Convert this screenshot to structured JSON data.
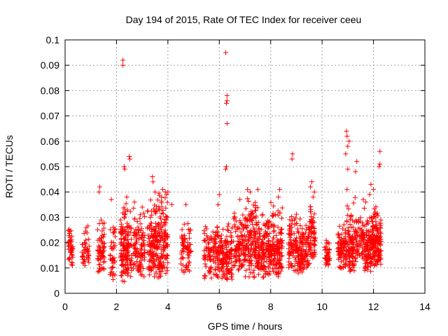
{
  "chart_data": {
    "type": "scatter",
    "title": "Day 194 of 2015, Rate Of TEC Index for receiver ceeu",
    "xlabel": "GPS time / hours",
    "ylabel": "ROTI / TECUs",
    "xlim": [
      0,
      14
    ],
    "ylim": [
      0,
      0.1
    ],
    "xticks": [
      "0",
      "2",
      "4",
      "6",
      "8",
      "10",
      "12",
      "14"
    ],
    "yticks": [
      "0",
      "0.01",
      "0.02",
      "0.03",
      "0.04",
      "0.05",
      "0.06",
      "0.07",
      "0.08",
      "0.09",
      "0.1"
    ],
    "grid": true,
    "marker": "plus",
    "color": "#ff0000",
    "series": [
      {
        "points": [
          [
            2.25,
            0.092
          ],
          [
            2.25,
            0.09
          ],
          [
            6.25,
            0.095
          ],
          [
            6.3,
            0.078
          ],
          [
            6.3,
            0.076
          ],
          [
            6.28,
            0.075
          ],
          [
            6.3,
            0.067
          ],
          [
            6.25,
            0.049
          ],
          [
            6.28,
            0.05
          ],
          [
            2.5,
            0.054
          ],
          [
            2.52,
            0.053
          ],
          [
            2.3,
            0.05
          ],
          [
            2.32,
            0.049
          ],
          [
            8.85,
            0.055
          ],
          [
            8.83,
            0.053
          ],
          [
            10.95,
            0.064
          ],
          [
            10.97,
            0.062
          ],
          [
            11.0,
            0.058
          ],
          [
            10.92,
            0.055
          ],
          [
            11.05,
            0.06
          ],
          [
            12.25,
            0.056
          ],
          [
            12.25,
            0.051
          ],
          [
            12.22,
            0.05
          ],
          [
            11.0,
            0.049
          ],
          [
            10.97,
            0.041
          ],
          [
            11.35,
            0.052
          ],
          [
            11.3,
            0.048
          ],
          [
            3.4,
            0.046
          ],
          [
            3.42,
            0.044
          ],
          [
            1.35,
            0.042
          ],
          [
            1.32,
            0.04
          ],
          [
            1.8,
            0.037
          ],
          [
            2.4,
            0.038
          ],
          [
            3.8,
            0.041
          ],
          [
            3.9,
            0.04
          ],
          [
            3.95,
            0.039
          ],
          [
            4.0,
            0.04
          ],
          [
            3.75,
            0.038
          ],
          [
            3.5,
            0.04
          ],
          [
            9.6,
            0.044
          ],
          [
            9.55,
            0.042
          ],
          [
            9.7,
            0.04
          ],
          [
            9.65,
            0.038
          ],
          [
            11.9,
            0.043
          ],
          [
            12.0,
            0.041
          ],
          [
            11.85,
            0.039
          ],
          [
            7.5,
            0.041
          ],
          [
            7.1,
            0.041
          ],
          [
            7.2,
            0.04
          ],
          [
            8.35,
            0.041
          ],
          [
            8.3,
            0.038
          ],
          [
            6.0,
            0.039
          ],
          [
            6.8,
            0.037
          ],
          [
            5.95,
            0.035
          ],
          [
            4.15,
            0.035
          ],
          [
            3.0,
            0.034
          ],
          [
            2.7,
            0.036
          ],
          [
            4.7,
            0.035
          ],
          [
            11.6,
            0.037
          ],
          [
            11.7,
            0.036
          ]
        ]
      }
    ]
  }
}
